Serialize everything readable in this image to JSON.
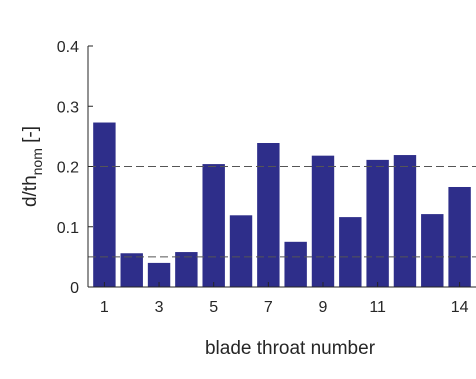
{
  "chart_data": {
    "type": "bar",
    "x": [
      1,
      2,
      3,
      4,
      5,
      6,
      7,
      8,
      9,
      10,
      11,
      12,
      13,
      14
    ],
    "values": [
      0.273,
      0.056,
      0.04,
      0.058,
      0.204,
      0.119,
      0.239,
      0.075,
      0.218,
      0.116,
      0.211,
      0.219,
      0.121,
      0.166
    ],
    "x_tick_labels": [
      "1",
      "3",
      "5",
      "7",
      "9",
      "11",
      "14"
    ],
    "x_tick_positions": [
      1,
      3,
      5,
      7,
      9,
      11,
      14
    ],
    "y_ticks": [
      0,
      0.1,
      0.2,
      0.3,
      0.4
    ],
    "y_tick_labels": [
      "0",
      "0.1",
      "0.2",
      "0.3",
      "0.4"
    ],
    "ylim": [
      0,
      0.4
    ],
    "xlim": [
      0.4,
      14.6
    ],
    "xlabel": "blade throat number",
    "ylabel_main": "d/th",
    "ylabel_sub": "nom",
    "ylabel_suffix": " [-]",
    "reference_lines": [
      0.2,
      0.05
    ],
    "bar_color": "#2e2e8a",
    "reference_line_color": "#555555",
    "grid": false,
    "legend": "none"
  }
}
